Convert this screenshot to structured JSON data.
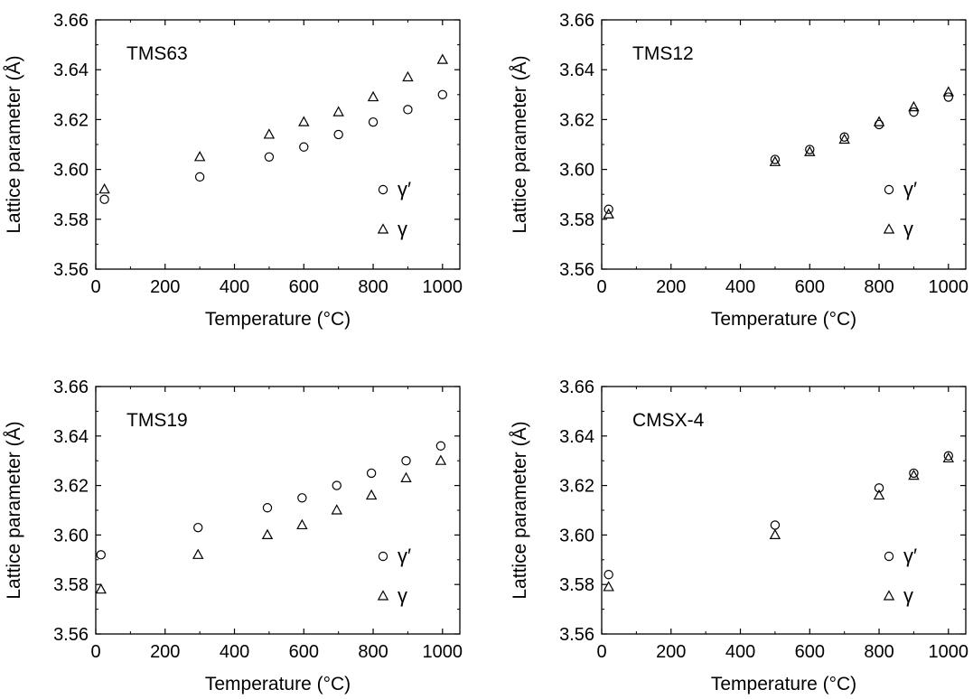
{
  "chart_data": [
    {
      "type": "scatter",
      "title": "TMS63",
      "xlabel": "Temperature (°C)",
      "ylabel": "Lattice parameter (Å)",
      "xlim": [
        0,
        1050
      ],
      "ylim": [
        3.56,
        3.66
      ],
      "xticks": [
        "0",
        "200",
        "400",
        "600",
        "800",
        "1000"
      ],
      "yticks": [
        "3.56",
        "3.58",
        "3.60",
        "3.62",
        "3.64",
        "3.66"
      ],
      "legend_position": "lower-right",
      "series": [
        {
          "name": "γ′",
          "marker": "circle",
          "x": [
            25,
            300,
            500,
            600,
            700,
            800,
            900,
            1000
          ],
          "y": [
            3.588,
            3.597,
            3.605,
            3.609,
            3.614,
            3.619,
            3.624,
            3.63
          ]
        },
        {
          "name": "γ",
          "marker": "triangle",
          "x": [
            25,
            300,
            500,
            600,
            700,
            800,
            900,
            1000
          ],
          "y": [
            3.592,
            3.605,
            3.614,
            3.619,
            3.623,
            3.629,
            3.637,
            3.644
          ]
        }
      ]
    },
    {
      "type": "scatter",
      "title": "TMS12",
      "xlabel": "Temperature (°C)",
      "ylabel": "Lattice parameter (Å)",
      "xlim": [
        0,
        1050
      ],
      "ylim": [
        3.56,
        3.66
      ],
      "xticks": [
        "0",
        "200",
        "400",
        "600",
        "800",
        "1000"
      ],
      "yticks": [
        "3.56",
        "3.58",
        "3.60",
        "3.62",
        "3.64",
        "3.66"
      ],
      "legend_position": "lower-right",
      "series": [
        {
          "name": "γ′",
          "marker": "circle",
          "x": [
            20,
            500,
            600,
            700,
            800,
            900,
            1000
          ],
          "y": [
            3.584,
            3.604,
            3.608,
            3.613,
            3.618,
            3.623,
            3.629
          ]
        },
        {
          "name": "γ",
          "marker": "triangle",
          "x": [
            20,
            500,
            600,
            700,
            800,
            900,
            1000
          ],
          "y": [
            3.582,
            3.603,
            3.607,
            3.612,
            3.619,
            3.625,
            3.631
          ]
        }
      ]
    },
    {
      "type": "scatter",
      "title": "TMS19",
      "xlabel": "Temperature (°C)",
      "ylabel": "Lattice parameter (Å)",
      "xlim": [
        0,
        1050
      ],
      "ylim": [
        3.56,
        3.66
      ],
      "xticks": [
        "0",
        "200",
        "400",
        "600",
        "800",
        "1000"
      ],
      "yticks": [
        "3.56",
        "3.58",
        "3.60",
        "3.62",
        "3.64",
        "3.66"
      ],
      "legend_position": "lower-right",
      "series": [
        {
          "name": "γ′",
          "marker": "circle",
          "x": [
            15,
            295,
            495,
            595,
            695,
            795,
            895,
            995
          ],
          "y": [
            3.592,
            3.603,
            3.611,
            3.615,
            3.62,
            3.625,
            3.63,
            3.636
          ]
        },
        {
          "name": "γ",
          "marker": "triangle",
          "x": [
            15,
            295,
            495,
            595,
            695,
            795,
            895,
            995
          ],
          "y": [
            3.578,
            3.592,
            3.6,
            3.604,
            3.61,
            3.616,
            3.623,
            3.63
          ]
        }
      ]
    },
    {
      "type": "scatter",
      "title": "CMSX-4",
      "xlabel": "Temperature (°C)",
      "ylabel": "Lattice parameter (Å)",
      "xlim": [
        0,
        1050
      ],
      "ylim": [
        3.56,
        3.66
      ],
      "xticks": [
        "0",
        "200",
        "400",
        "600",
        "800",
        "1000"
      ],
      "yticks": [
        "3.56",
        "3.58",
        "3.60",
        "3.62",
        "3.64",
        "3.66"
      ],
      "legend_position": "lower-right",
      "series": [
        {
          "name": "γ′",
          "marker": "circle",
          "x": [
            20,
            500,
            800,
            900,
            1000
          ],
          "y": [
            3.584,
            3.604,
            3.619,
            3.625,
            3.632
          ]
        },
        {
          "name": "γ",
          "marker": "triangle",
          "x": [
            20,
            500,
            800,
            900,
            1000
          ],
          "y": [
            3.579,
            3.6,
            3.616,
            3.624,
            3.631
          ]
        }
      ]
    }
  ]
}
